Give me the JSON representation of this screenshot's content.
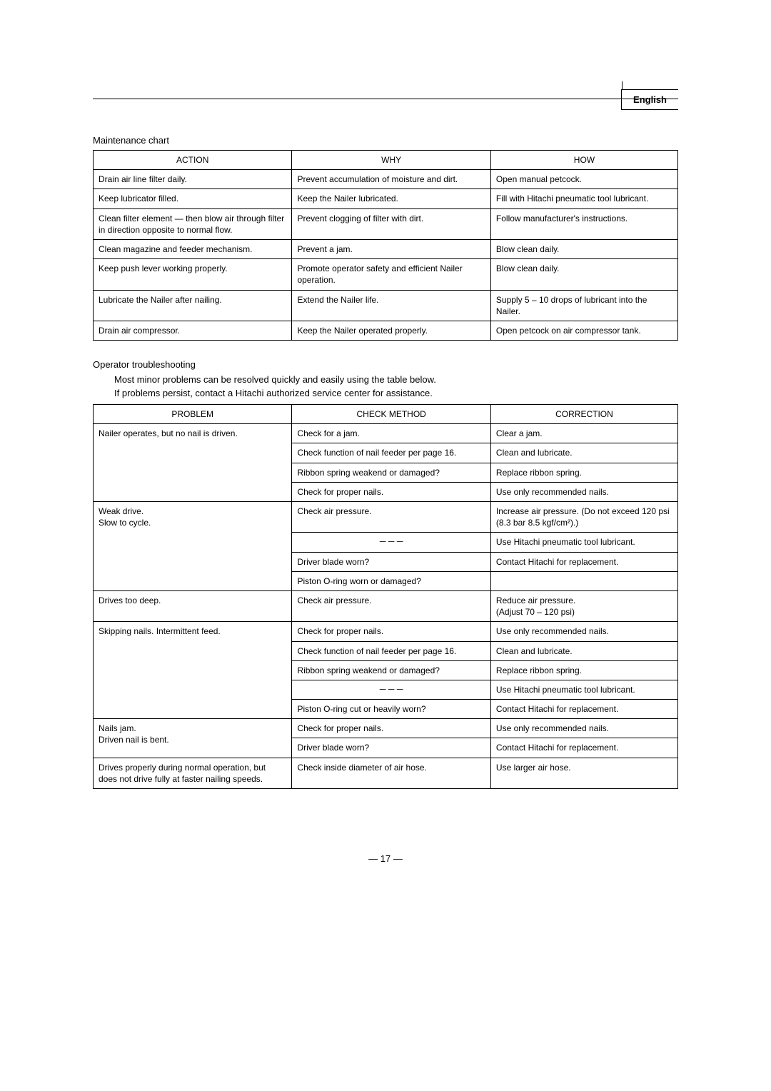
{
  "lang_label": "English",
  "maintenance": {
    "title": "Maintenance chart",
    "headers": [
      "ACTION",
      "WHY",
      "HOW"
    ],
    "rows": [
      [
        "Drain air line filter daily.",
        "Prevent accumulation of moisture and dirt.",
        "Open manual petcock."
      ],
      [
        "Keep lubricator filled.",
        "Keep the Nailer lubricated.",
        "Fill with Hitachi pneumatic tool lubricant."
      ],
      [
        "Clean filter element — then blow air through filter in direction opposite to normal flow.",
        "Prevent clogging of filter with dirt.",
        "Follow manufacturer's instructions."
      ],
      [
        "Clean magazine and feeder mechanism.",
        "Prevent a jam.",
        "Blow clean daily."
      ],
      [
        "Keep push lever working properly.",
        "Promote operator safety and efficient Nailer operation.",
        "Blow clean daily."
      ],
      [
        "Lubricate the Nailer after nailing.",
        "Extend the Nailer life.",
        "Supply 5 – 10 drops of lubricant into the Nailer."
      ],
      [
        "Drain air compressor.",
        "Keep the Nailer operated properly.",
        "Open petcock on air compressor tank."
      ]
    ]
  },
  "troubleshooting": {
    "title": "Operator troubleshooting",
    "sub1": "Most minor problems can be resolved quickly and easily using the table below.",
    "sub2": "If problems persist, contact a Hitachi authorized service center for assistance.",
    "headers": [
      "PROBLEM",
      "CHECK METHOD",
      "CORRECTION"
    ],
    "rows": [
      {
        "problem": "Nailer operates, but no nail is driven.",
        "rowspan": 4,
        "check": "Check for a jam.",
        "correction": "Clear a jam."
      },
      {
        "check": "Check function of nail feeder per page 16.",
        "correction": "Clean and lubricate."
      },
      {
        "check": "Ribbon spring weakend or damaged?",
        "correction": "Replace ribbon spring."
      },
      {
        "check": "Check for proper nails.",
        "correction": "Use only recommended nails."
      },
      {
        "problem": "Weak drive.\nSlow to cycle.",
        "rowspan": 4,
        "check": "Check air pressure.",
        "correction": "Increase air pressure. (Do not exceed 120 psi (8.3 bar   8.5 kgf/cm²).)"
      },
      {
        "check": "－－－",
        "correction": "Use Hitachi pneumatic tool lubricant."
      },
      {
        "check": "Driver blade worn?",
        "correction": "Contact Hitachi for replacement."
      },
      {
        "check": "Piston O-ring worn or damaged?",
        "correction": ""
      },
      {
        "problem": "Drives too deep.",
        "rowspan": 1,
        "check": "Check air pressure.",
        "correction": "Reduce air pressure.\n(Adjust 70 – 120 psi)"
      },
      {
        "problem": "Skipping nails. Intermittent feed.",
        "rowspan": 5,
        "check": "Check for proper nails.",
        "correction": "Use only recommended nails."
      },
      {
        "check": "Check function of nail feeder per page 16.",
        "correction": "Clean and lubricate."
      },
      {
        "check": "Ribbon spring weakend or damaged?",
        "correction": "Replace ribbon spring."
      },
      {
        "check": "－－－",
        "correction": "Use Hitachi pneumatic tool lubricant."
      },
      {
        "check": "Piston O-ring cut or heavily worn?",
        "correction": "Contact Hitachi for replacement."
      },
      {
        "problem": "Nails jam.\nDriven nail is bent.",
        "rowspan": 2,
        "check": "Check for proper nails.",
        "correction": "Use only recommended nails."
      },
      {
        "check": "Driver blade worn?",
        "correction": "Contact Hitachi for replacement."
      },
      {
        "problem": "Drives properly during normal operation, but does not drive fully at faster nailing speeds.",
        "rowspan": 1,
        "check": "Check inside diameter of air hose.",
        "correction": "Use larger air hose."
      }
    ]
  },
  "page_number": "— 17 —"
}
